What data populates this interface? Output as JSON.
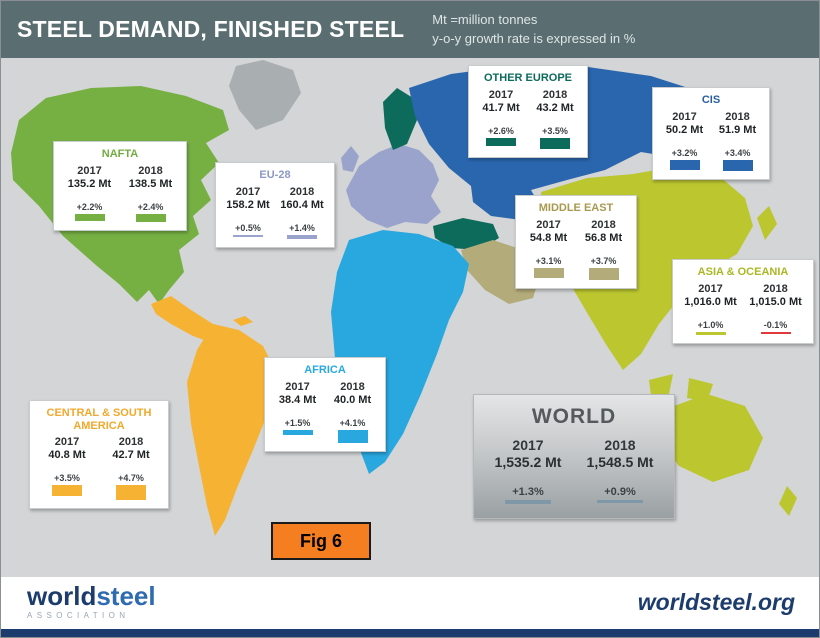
{
  "header": {
    "title": "STEEL DEMAND, FINISHED STEEL",
    "note_line1": "Mt =million tonnes",
    "note_line2": "y-o-y growth rate is expressed in %"
  },
  "fig_label": "Fig 6",
  "footer": {
    "logo_world": "world",
    "logo_steel": "steel",
    "logo_sub": "ASSOCIATION",
    "site": "worldsteel.org"
  },
  "colors": {
    "negative": "#e0393e",
    "map_background": "#d3d5d7",
    "header_background": "#5a6e71",
    "greenland_gray": "#a9aeb1",
    "footer_navy": "#1d3c6e",
    "fig_orange": "#f57e20"
  },
  "chart_data": {
    "type": "bar",
    "title": "STEEL DEMAND, FINISHED STEEL",
    "units_note": [
      "Mt =million tonnes",
      "y-o-y growth rate is expressed in %"
    ],
    "years": [
      "2017",
      "2018"
    ],
    "regions": [
      {
        "name": "NAFTA",
        "color": "#6fae3e",
        "bar_color": "#76b043",
        "map_color": "#76b043",
        "value_labels": [
          "135.2 Mt",
          "138.5 Mt"
        ],
        "values_mt": [
          135.2,
          138.5
        ],
        "growth_labels": [
          "+2.2%",
          "+2.4%"
        ],
        "growth_pct": [
          2.2,
          2.4
        ]
      },
      {
        "name": "EU-28",
        "color": "#8d98c6",
        "bar_color": "#9aa3cb",
        "map_color": "#9aa3cb",
        "value_labels": [
          "158.2 Mt",
          "160.4 Mt"
        ],
        "values_mt": [
          158.2,
          160.4
        ],
        "growth_labels": [
          "+0.5%",
          "+1.4%"
        ],
        "growth_pct": [
          0.5,
          1.4
        ]
      },
      {
        "name": "OTHER EUROPE",
        "color": "#0d6b5c",
        "bar_color": "#0d6b5c",
        "map_color": "#0d6b5c",
        "value_labels": [
          "41.7 Mt",
          "43.2 Mt"
        ],
        "values_mt": [
          41.7,
          43.2
        ],
        "growth_labels": [
          "+2.6%",
          "+3.5%"
        ],
        "growth_pct": [
          2.6,
          3.5
        ]
      },
      {
        "name": "CIS",
        "color": "#28609c",
        "bar_color": "#2a66ae",
        "map_color": "#2a66ae",
        "value_labels": [
          "50.2 Mt",
          "51.9 Mt"
        ],
        "values_mt": [
          50.2,
          51.9
        ],
        "growth_labels": [
          "+3.2%",
          "+3.4%"
        ],
        "growth_pct": [
          3.2,
          3.4
        ]
      },
      {
        "name": "MIDDLE EAST",
        "color": "#a79a4e",
        "bar_color": "#b3ab7a",
        "map_color": "#b3ab7a",
        "value_labels": [
          "54.8 Mt",
          "56.8 Mt"
        ],
        "values_mt": [
          54.8,
          56.8
        ],
        "growth_labels": [
          "+3.1%",
          "+3.7%"
        ],
        "growth_pct": [
          3.1,
          3.7
        ]
      },
      {
        "name": "ASIA & OCEANIA",
        "color": "#a9b824",
        "bar_color": "#bcc72f",
        "map_color": "#bcc72f",
        "value_labels": [
          "1,016.0 Mt",
          "1,015.0 Mt"
        ],
        "values_mt": [
          1016.0,
          1015.0
        ],
        "growth_labels": [
          "+1.0%",
          "-0.1%"
        ],
        "growth_pct": [
          1.0,
          -0.1
        ]
      },
      {
        "name": "AFRICA",
        "color": "#29a8e0",
        "bar_color": "#29a8e0",
        "map_color": "#29a8e0",
        "value_labels": [
          "38.4 Mt",
          "40.0 Mt"
        ],
        "values_mt": [
          38.4,
          40.0
        ],
        "growth_labels": [
          "+1.5%",
          "+4.1%"
        ],
        "growth_pct": [
          1.5,
          4.1
        ]
      },
      {
        "name": "CENTRAL & SOUTH AMERICA",
        "color": "#f0a92d",
        "bar_color": "#f6b333",
        "map_color": "#f6b333",
        "value_labels": [
          "40.8 Mt",
          "42.7 Mt"
        ],
        "values_mt": [
          40.8,
          42.7
        ],
        "growth_labels": [
          "+3.5%",
          "+4.7%"
        ],
        "growth_pct": [
          3.5,
          4.7
        ]
      },
      {
        "name": "WORLD",
        "color": "#54595c",
        "bar_color": "#7e98a8",
        "map_color": "",
        "value_labels": [
          "1,535.2 Mt",
          "1,548.5 Mt"
        ],
        "values_mt": [
          1535.2,
          1548.5
        ],
        "growth_labels": [
          "+1.3%",
          "+0.9%"
        ],
        "growth_pct": [
          1.3,
          0.9
        ]
      }
    ]
  }
}
